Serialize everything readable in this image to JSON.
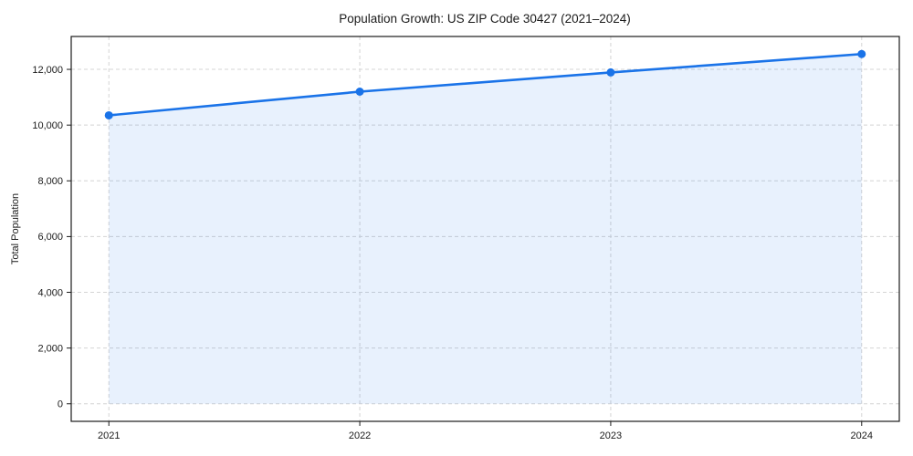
{
  "chart_data": {
    "type": "line",
    "title": "Population Growth: US ZIP Code 30427 (2021–2024)",
    "xlabel": "",
    "ylabel": "Total Population",
    "x": [
      2021,
      2022,
      2023,
      2024
    ],
    "series": [
      {
        "name": "Total Population",
        "values": [
          10350,
          11200,
          11890,
          12550
        ]
      }
    ],
    "markers": true,
    "area_fill": true,
    "xticks": [
      2021,
      2022,
      2023,
      2024
    ],
    "xtick_labels": [
      "2021",
      "2022",
      "2023",
      "2024"
    ],
    "yticks": [
      0,
      2000,
      4000,
      6000,
      8000,
      10000,
      12000
    ],
    "ytick_labels": [
      "0",
      "2,000",
      "4,000",
      "6,000",
      "8,000",
      "10,000",
      "12,000"
    ],
    "xlim": [
      2020.85,
      2024.15
    ],
    "ylim": [
      -630,
      13180
    ],
    "grid": true,
    "grid_style": "dashed",
    "legend": "none",
    "colors": {
      "line": "#1a73e8",
      "marker": "#1a73e8",
      "fill": "#1a73e8",
      "fill_opacity": 0.1,
      "grid": "#d4d4d4",
      "spine": "#1a1a1a",
      "text": "#1a1a1a",
      "background": "#ffffff"
    }
  }
}
